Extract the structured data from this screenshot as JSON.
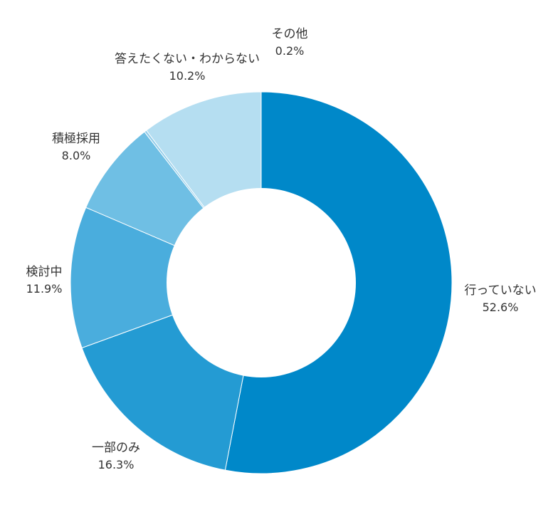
{
  "chart_data": {
    "type": "pie",
    "donut": true,
    "start": "12 o'clock, clockwise",
    "labels_outside": true,
    "slices": [
      {
        "label": "行っていない",
        "value": 52.6,
        "value_label": "52.6%",
        "color": "#0088C9"
      },
      {
        "label": "一部のみ",
        "value": 16.3,
        "value_label": "16.3%",
        "color": "#249BD3"
      },
      {
        "label": "検討中",
        "value": 11.9,
        "value_label": "11.9%",
        "color": "#4AADDD"
      },
      {
        "label": "積極採用",
        "value": 8.0,
        "value_label": "8.0%",
        "color": "#6FBFE4"
      },
      {
        "label": "その他",
        "value": 0.2,
        "value_label": "0.2%",
        "color": "#92CDEA"
      },
      {
        "label": "答えたくない・わからない",
        "value": 10.2,
        "value_label": "10.2%",
        "color": "#B5DEF1"
      }
    ]
  }
}
